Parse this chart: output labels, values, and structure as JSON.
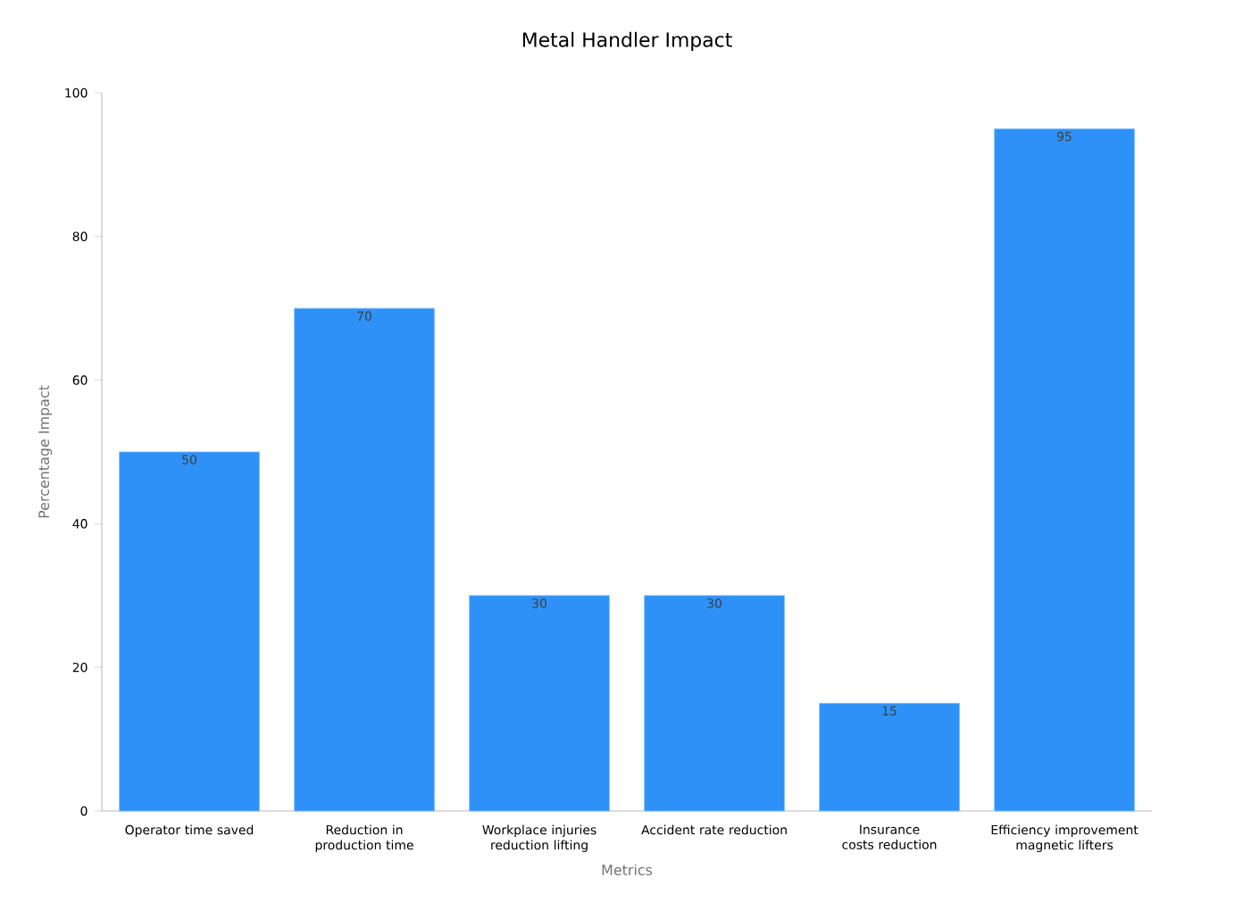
{
  "chart_data": {
    "type": "bar",
    "title": "Metal Handler Impact",
    "xlabel": "Metrics",
    "ylabel": "Percentage Impact",
    "categories": [
      "Operator time saved",
      "Reduction in production time",
      "Workplace injuries reduction lifting",
      "Accident rate reduction",
      "Insurance costs reduction",
      "Efficiency improvement magnetic lifters"
    ],
    "values": [
      50,
      70,
      30,
      30,
      15,
      95
    ],
    "color": "#2e91f8",
    "ylim": [
      0,
      100
    ],
    "yticks": [
      0,
      20,
      40,
      60,
      80,
      100
    ],
    "grid": false,
    "data_labels": true
  }
}
